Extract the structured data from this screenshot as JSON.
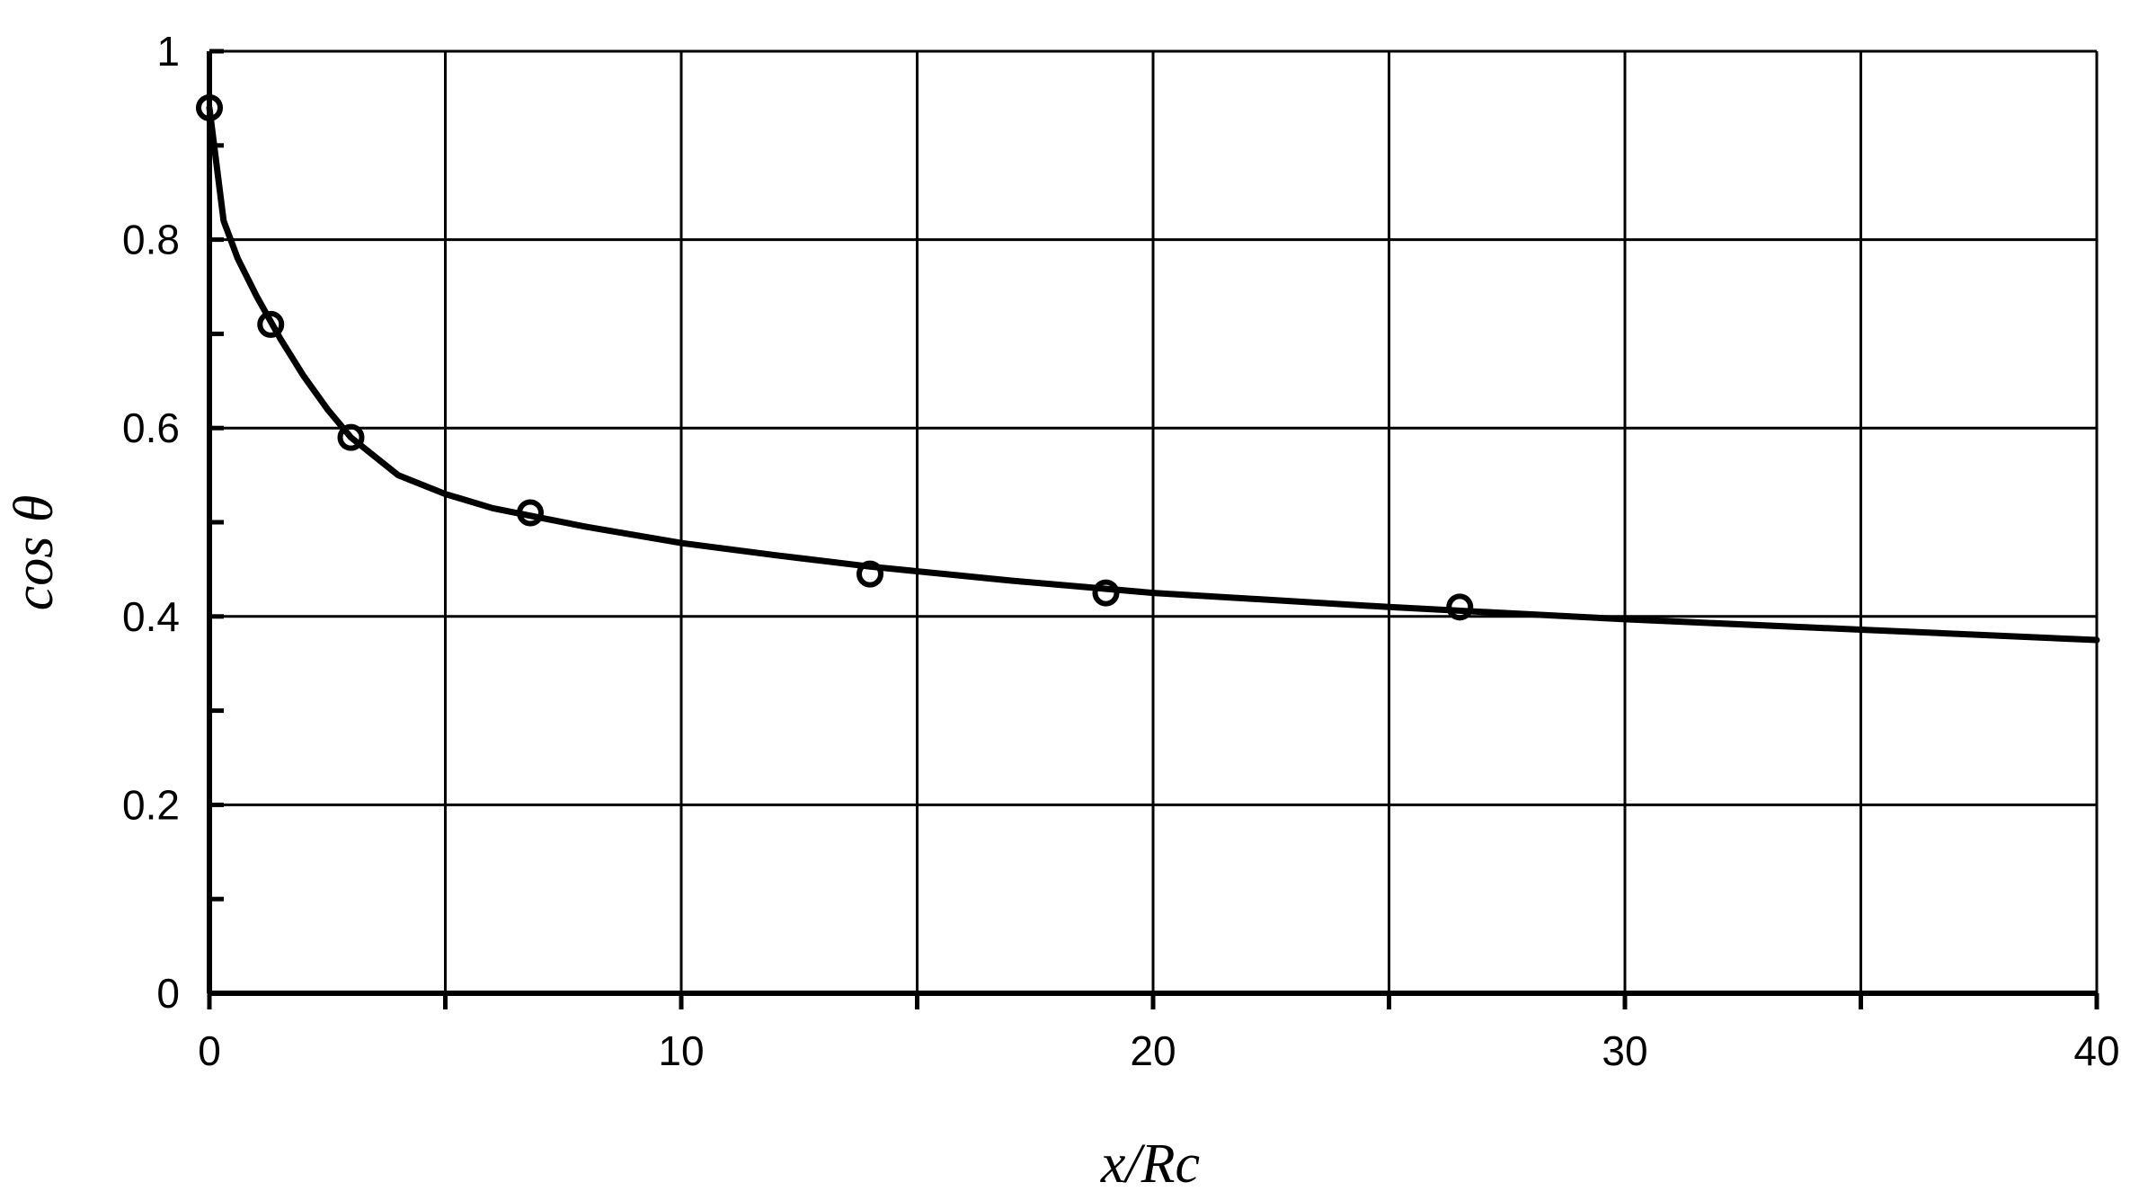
{
  "chart_data": {
    "type": "scatter",
    "title": "",
    "xlabel": "x/Rc",
    "ylabel": "cos θ",
    "xlim": [
      0,
      40
    ],
    "ylim": [
      0,
      1
    ],
    "x_ticks": [
      0,
      10,
      20,
      30,
      40
    ],
    "y_ticks": [
      0,
      0.2,
      0.4,
      0.6,
      0.8,
      1
    ],
    "x_tick_labels": [
      "0",
      "10",
      "20",
      "30",
      "40"
    ],
    "y_tick_labels": [
      "0",
      "0.2",
      "0.4",
      "0.6",
      "0.8",
      "1"
    ],
    "x_minor_ticks": [
      5,
      15,
      25,
      35
    ],
    "y_minor_ticks": [
      0.1,
      0.3,
      0.5,
      0.7,
      0.9
    ],
    "grid": true,
    "series": [
      {
        "kind": "markers",
        "marker": "open-circle",
        "color": "#000000",
        "x": [
          0,
          1.3,
          3.0,
          6.8,
          14.0,
          19.0,
          26.5
        ],
        "y": [
          0.94,
          0.71,
          0.59,
          0.51,
          0.445,
          0.425,
          0.41
        ]
      },
      {
        "kind": "line",
        "color": "#000000",
        "x": [
          0,
          0.3,
          0.6,
          1.0,
          1.5,
          2.0,
          2.5,
          3.0,
          4.0,
          5.0,
          6.0,
          7.0,
          8.0,
          10.0,
          12.0,
          14.0,
          17.0,
          20.0,
          25.0,
          30.0,
          35.0,
          40.0
        ],
        "y": [
          0.94,
          0.82,
          0.78,
          0.74,
          0.695,
          0.655,
          0.62,
          0.59,
          0.55,
          0.53,
          0.515,
          0.505,
          0.495,
          0.478,
          0.465,
          0.453,
          0.438,
          0.425,
          0.41,
          0.397,
          0.386,
          0.375
        ]
      }
    ]
  }
}
